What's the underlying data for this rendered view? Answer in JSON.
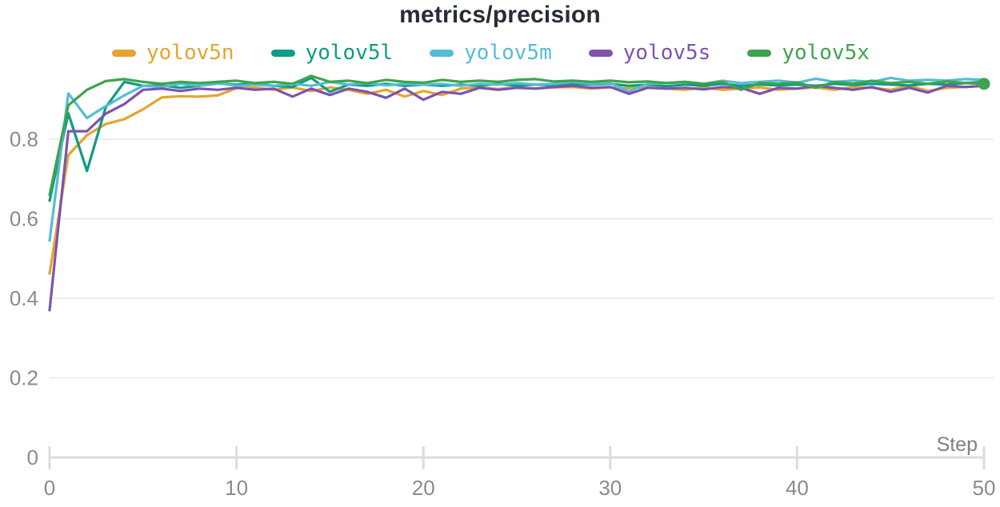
{
  "chart_data": {
    "type": "line",
    "title": "metrics/precision",
    "xlabel": "Step",
    "ylabel": "",
    "xlim": [
      0,
      50
    ],
    "ylim": [
      0,
      1.0
    ],
    "x_ticks": [
      0,
      10,
      20,
      30,
      40,
      50
    ],
    "y_ticks": [
      0,
      0.2,
      0.4,
      0.6,
      0.8
    ],
    "grid": "horizontal",
    "legend_position": "top",
    "styles": {
      "grid_color": "#ececec",
      "axis_color": "#dcdcdc",
      "tick_label_color": "#878c92",
      "title_color": "#262d36"
    },
    "x": [
      0,
      1,
      2,
      3,
      4,
      5,
      6,
      7,
      8,
      9,
      10,
      11,
      12,
      13,
      14,
      15,
      16,
      17,
      18,
      19,
      20,
      21,
      22,
      23,
      24,
      25,
      26,
      27,
      28,
      29,
      30,
      31,
      32,
      33,
      34,
      35,
      36,
      37,
      38,
      39,
      40,
      41,
      42,
      43,
      44,
      45,
      46,
      47,
      48,
      49,
      50
    ],
    "series": [
      {
        "name": "yolov5n",
        "color": "#e5a42e",
        "values": [
          0.462,
          0.76,
          0.81,
          0.838,
          0.85,
          0.875,
          0.905,
          0.908,
          0.907,
          0.91,
          0.928,
          0.93,
          0.924,
          0.93,
          0.921,
          0.93,
          0.924,
          0.914,
          0.924,
          0.907,
          0.921,
          0.911,
          0.927,
          0.93,
          0.926,
          0.93,
          0.927,
          0.93,
          0.931,
          0.927,
          0.93,
          0.928,
          0.93,
          0.927,
          0.924,
          0.93,
          0.924,
          0.927,
          0.93,
          0.924,
          0.927,
          0.93,
          0.924,
          0.931,
          0.929,
          0.924,
          0.934,
          0.921,
          0.929,
          0.931,
          0.934
        ]
      },
      {
        "name": "yolov5l",
        "color": "#0e9c84",
        "values": [
          0.645,
          0.865,
          0.72,
          0.88,
          0.944,
          0.934,
          0.935,
          0.929,
          0.934,
          0.94,
          0.937,
          0.94,
          0.934,
          0.931,
          0.954,
          0.919,
          0.937,
          0.934,
          0.939,
          0.934,
          0.937,
          0.934,
          0.937,
          0.934,
          0.939,
          0.934,
          0.937,
          0.935,
          0.939,
          0.937,
          0.939,
          0.934,
          0.937,
          0.933,
          0.937,
          0.934,
          0.939,
          0.934,
          0.937,
          0.935,
          0.937,
          0.934,
          0.939,
          0.936,
          0.939,
          0.937,
          0.935,
          0.939,
          0.937,
          0.941,
          0.944
        ]
      },
      {
        "name": "yolov5m",
        "color": "#54bdd4",
        "values": [
          0.545,
          0.915,
          0.853,
          0.883,
          0.91,
          0.934,
          0.931,
          0.939,
          0.934,
          0.941,
          0.934,
          0.937,
          0.934,
          0.939,
          0.934,
          0.944,
          0.937,
          0.941,
          0.935,
          0.939,
          0.937,
          0.939,
          0.934,
          0.939,
          0.937,
          0.941,
          0.937,
          0.939,
          0.944,
          0.939,
          0.941,
          0.92,
          0.939,
          0.941,
          0.944,
          0.939,
          0.947,
          0.941,
          0.944,
          0.947,
          0.942,
          0.952,
          0.944,
          0.947,
          0.944,
          0.954,
          0.947,
          0.949,
          0.947,
          0.951,
          0.949
        ]
      },
      {
        "name": "yolov5s",
        "color": "#7d53b0",
        "values": [
          0.37,
          0.82,
          0.82,
          0.864,
          0.888,
          0.924,
          0.927,
          0.921,
          0.927,
          0.924,
          0.929,
          0.924,
          0.927,
          0.907,
          0.927,
          0.911,
          0.927,
          0.919,
          0.904,
          0.927,
          0.899,
          0.919,
          0.914,
          0.929,
          0.924,
          0.929,
          0.927,
          0.931,
          0.934,
          0.929,
          0.931,
          0.914,
          0.929,
          0.927,
          0.929,
          0.925,
          0.931,
          0.929,
          0.914,
          0.929,
          0.927,
          0.934,
          0.929,
          0.924,
          0.931,
          0.919,
          0.929,
          0.917,
          0.934,
          0.931,
          0.934
        ]
      },
      {
        "name": "yolov5x",
        "color": "#3fa34d",
        "end_marker": true,
        "values": [
          0.66,
          0.885,
          0.924,
          0.946,
          0.951,
          0.944,
          0.939,
          0.944,
          0.941,
          0.944,
          0.947,
          0.941,
          0.944,
          0.939,
          0.959,
          0.944,
          0.947,
          0.941,
          0.949,
          0.944,
          0.942,
          0.949,
          0.944,
          0.947,
          0.944,
          0.949,
          0.951,
          0.945,
          0.947,
          0.944,
          0.947,
          0.943,
          0.945,
          0.941,
          0.944,
          0.939,
          0.944,
          0.924,
          0.941,
          0.939,
          0.943,
          0.929,
          0.944,
          0.939,
          0.947,
          0.941,
          0.944,
          0.939,
          0.945,
          0.941,
          0.939
        ]
      }
    ]
  }
}
